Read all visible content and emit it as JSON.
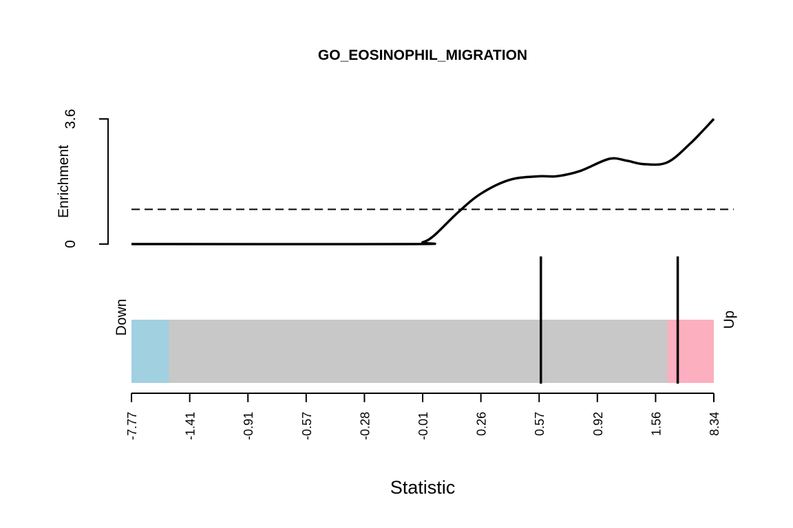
{
  "chart_data": {
    "type": "barcode",
    "title": "GO_EOSINOPHIL_MIGRATION",
    "enrichment": {
      "ylabel": "Enrichment",
      "ylim": [
        0,
        3.6
      ],
      "ytick_labels": [
        "0",
        "3.6"
      ],
      "baseline": 1,
      "x": [
        0.0,
        0.48,
        0.5,
        0.52,
        0.56,
        0.6,
        0.65,
        0.7,
        0.73,
        0.77,
        0.82,
        0.85,
        0.88,
        0.92,
        0.96,
        1.0
      ],
      "y": [
        0.0,
        0.0,
        0.05,
        0.25,
        0.9,
        1.45,
        1.85,
        1.95,
        1.95,
        2.1,
        2.45,
        2.4,
        2.3,
        2.35,
        2.9,
        3.6
      ]
    },
    "barcode": {
      "down_label": "Down",
      "up_label": "Up",
      "down_region": [
        0.0,
        0.064
      ],
      "up_region": [
        0.92,
        1.0
      ],
      "colors": {
        "down": "#a1d0e1",
        "neutral": "#c8c8c8",
        "up": "#fbafbf",
        "line": "#000000"
      },
      "gene_positions": [
        0.703,
        0.938
      ]
    },
    "xaxis": {
      "xlabel": "Statistic",
      "tick_labels": [
        "-7.77",
        "-1.41",
        "-0.91",
        "-0.57",
        "-0.28",
        "-0.01",
        "0.26",
        "0.57",
        "0.92",
        "1.56",
        "8.34"
      ]
    }
  }
}
